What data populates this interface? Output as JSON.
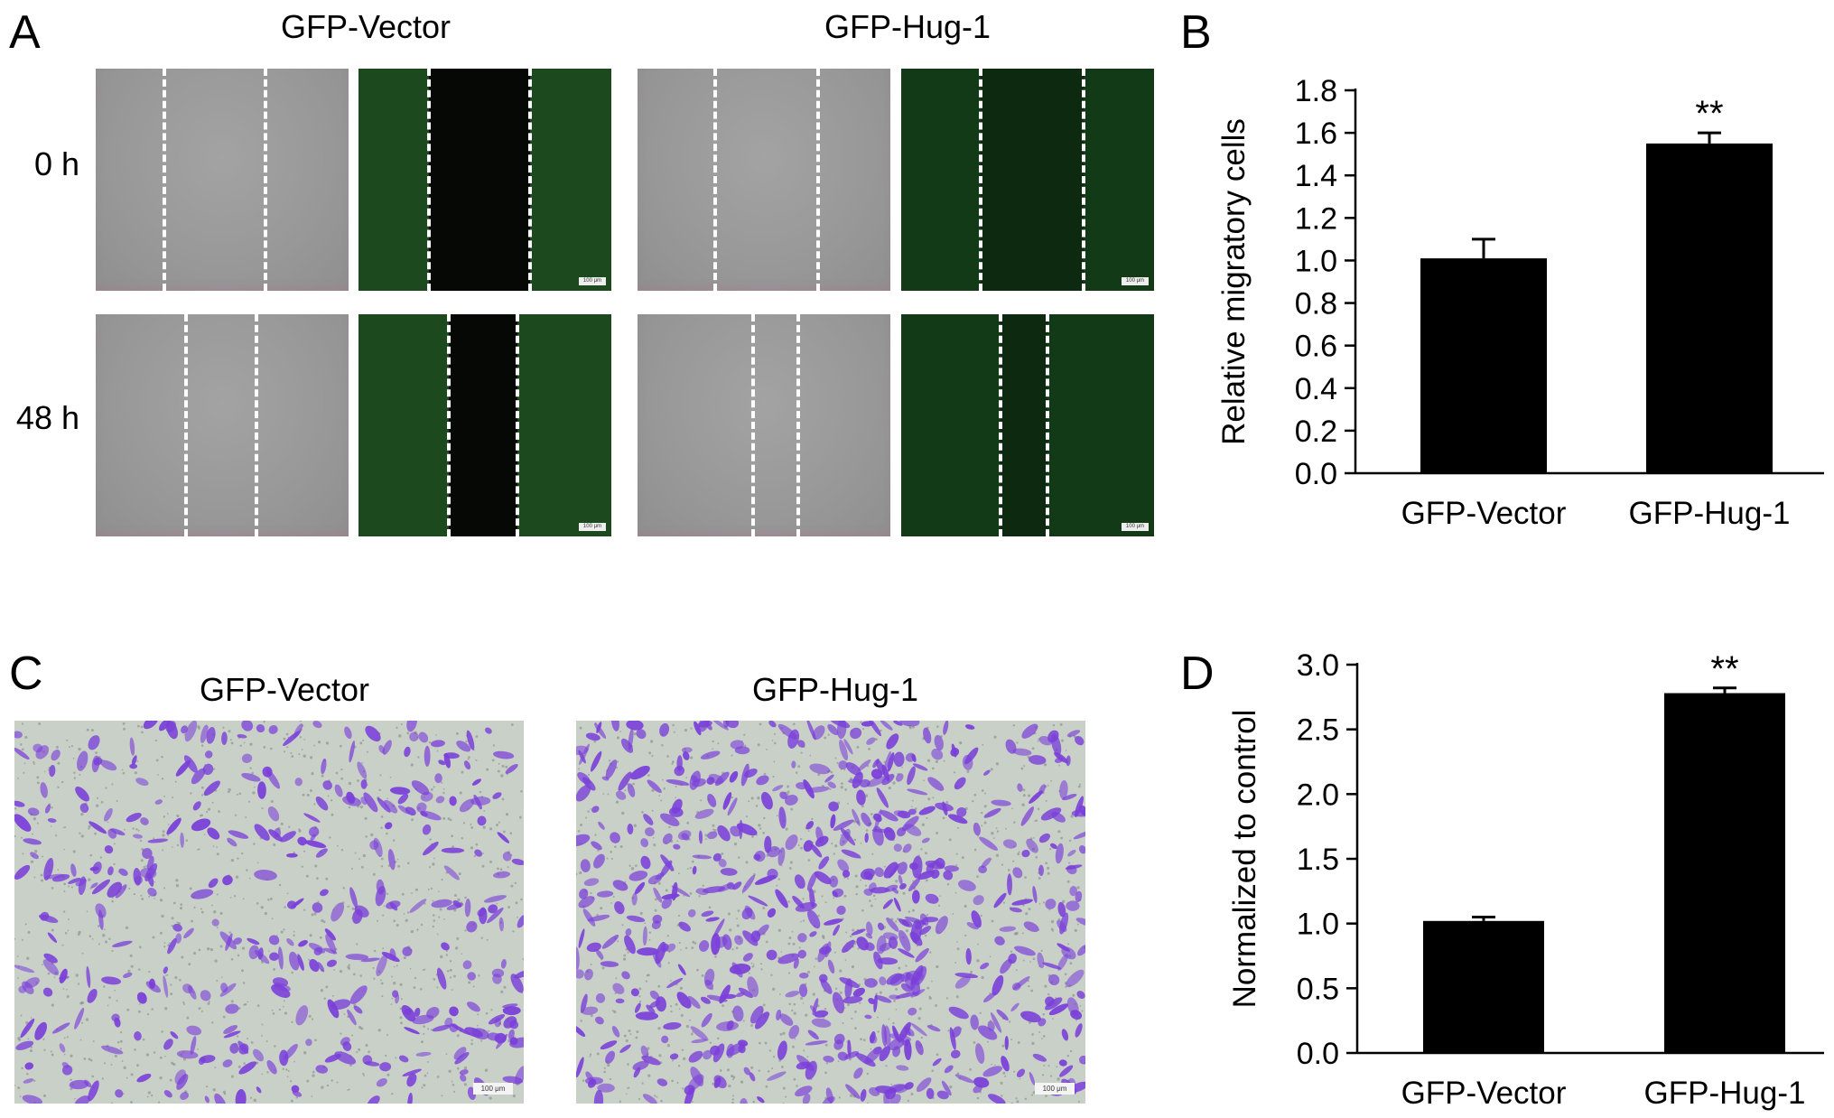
{
  "panel_labels": {
    "a": "A",
    "b": "B",
    "c": "C",
    "d": "D"
  },
  "panel_a": {
    "groups": [
      "GFP-Vector",
      "GFP-Hug-1"
    ],
    "rows": [
      "0 h",
      "48 h"
    ],
    "scale_bar": "100 μm"
  },
  "panel_c": {
    "groups": [
      "GFP-Vector",
      "GFP-Hug-1"
    ],
    "scale_bar": "100 μm"
  },
  "colors": {
    "bar": "#000000",
    "brightfield": "#999999",
    "fluorescence": "#0e2410",
    "cells": "#7a3fd9",
    "stain_bg": "#c9d0c8"
  },
  "chart_data": [
    {
      "id": "B",
      "type": "bar",
      "categories": [
        "GFP-Vector",
        "GFP-Hug-1"
      ],
      "values": [
        1.01,
        1.55
      ],
      "errors": [
        0.09,
        0.05
      ],
      "annotations": [
        "",
        "**"
      ],
      "ylabel": "Relative migratory cells",
      "ylim": [
        0,
        1.8
      ],
      "yticks": [
        "0.0",
        "0.2",
        "0.4",
        "0.6",
        "0.8",
        "1.0",
        "1.2",
        "1.4",
        "1.6",
        "1.8"
      ]
    },
    {
      "id": "D",
      "type": "bar",
      "categories": [
        "GFP-Vector",
        "GFP-Hug-1"
      ],
      "values": [
        1.02,
        2.78
      ],
      "errors": [
        0.03,
        0.04
      ],
      "annotations": [
        "",
        "**"
      ],
      "ylabel": "Normalized to control",
      "ylim": [
        0,
        3.0
      ],
      "yticks": [
        "0.0",
        "0.5",
        "1.0",
        "1.5",
        "2.0",
        "2.5",
        "3.0"
      ]
    }
  ]
}
